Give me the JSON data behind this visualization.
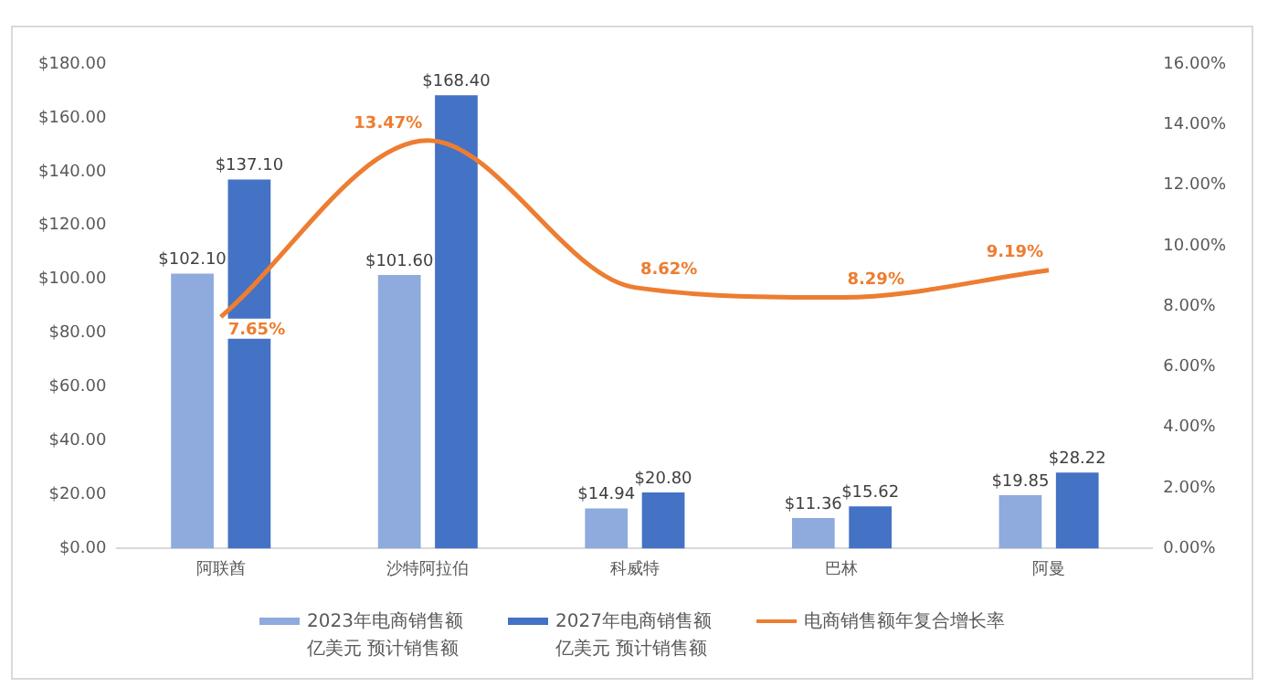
{
  "chart_data": {
    "type": "bar",
    "categories": [
      "阿联酋",
      "沙特阿拉伯",
      "科威特",
      "巴林",
      "阿曼"
    ],
    "series": [
      {
        "name": "2023年电商销售额亿美元 预计销售额",
        "color": "#8faadc",
        "values": [
          102.1,
          101.6,
          14.94,
          11.36,
          19.85
        ],
        "value_labels": [
          "$102.10",
          "$101.60",
          "$14.94",
          "$11.36",
          "$19.85"
        ]
      },
      {
        "name": "2027年电商销售额亿美元 预计销售额",
        "color": "#4472c4",
        "values": [
          137.1,
          168.4,
          20.8,
          15.62,
          28.22
        ],
        "value_labels": [
          "$137.10",
          "$168.40",
          "$20.80",
          "$15.62",
          "$28.22"
        ]
      },
      {
        "name": "电商销售额年复合增长率",
        "type": "line",
        "axis": "y2",
        "color": "#ed7d31",
        "values": [
          7.65,
          13.47,
          8.62,
          8.29,
          9.19
        ],
        "value_labels": [
          "7.65%",
          "13.47%",
          "8.62%",
          "8.29%",
          "9.19%"
        ]
      }
    ],
    "ylim": [
      0,
      180
    ],
    "yticks": [
      {
        "value": 0,
        "label": "$0.00"
      },
      {
        "value": 20,
        "label": "$20.00"
      },
      {
        "value": 40,
        "label": "$40.00"
      },
      {
        "value": 60,
        "label": "$60.00"
      },
      {
        "value": 80,
        "label": "$80.00"
      },
      {
        "value": 100,
        "label": "$100.00"
      },
      {
        "value": 120,
        "label": "$120.00"
      },
      {
        "value": 140,
        "label": "$140.00"
      },
      {
        "value": 160,
        "label": "$160.00"
      },
      {
        "value": 180,
        "label": "$180.00"
      }
    ],
    "y2lim": [
      0,
      16
    ],
    "y2ticks": [
      {
        "value": 0,
        "label": "0.00%"
      },
      {
        "value": 2,
        "label": "2.00%"
      },
      {
        "value": 4,
        "label": "4.00%"
      },
      {
        "value": 6,
        "label": "6.00%"
      },
      {
        "value": 8,
        "label": "8.00%"
      },
      {
        "value": 10,
        "label": "10.00%"
      },
      {
        "value": 12,
        "label": "12.00%"
      },
      {
        "value": 14,
        "label": "14.00%"
      },
      {
        "value": 16,
        "label": "16.00%"
      }
    ],
    "grid": false,
    "legend": "bottom",
    "marker": "none",
    "line_style": "solid"
  }
}
